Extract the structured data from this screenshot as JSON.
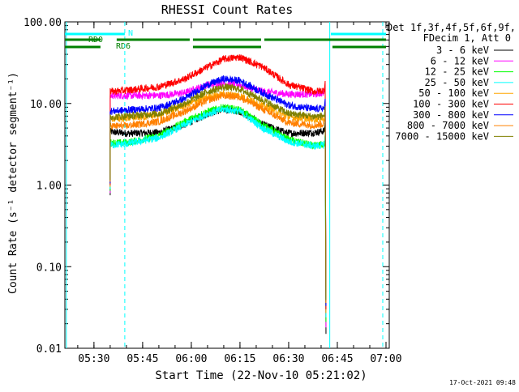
{
  "chart_data": {
    "type": "line",
    "title": "RHESSI Count Rates",
    "xlabel": "Start Time (22-Nov-10 05:21:02)",
    "ylabel": "Count Rate (s⁻¹ detector segment⁻¹)",
    "y_scale": "log",
    "ylim": [
      0.01,
      100
    ],
    "xlim": [
      "05:21:02",
      "07:01:00"
    ],
    "x_ticks": [
      "05:30",
      "05:45",
      "06:00",
      "06:15",
      "06:30",
      "06:45",
      "07:00"
    ],
    "y_ticks": [
      "0.01",
      "0.10",
      "1.00",
      "10.00",
      "100.00"
    ],
    "legend_header": [
      "Det 1f,3f,4f,5f,6f,9f,",
      "FDecim 1, Att 0"
    ],
    "legend_position": "right",
    "timestamp": "17-Oct-2021 09:48",
    "annotations": {
      "n_label": "N",
      "rd0_label": "RD0",
      "rd6_label": "RD6"
    },
    "flag_bars": {
      "night": {
        "color": "#00ffff",
        "segments": [
          [
            "05:21:02",
            "05:39:30"
          ],
          [
            "06:43:00",
            "07:00:00"
          ]
        ]
      },
      "rd0": {
        "color": "#008000",
        "segments": [
          [
            "05:21:02",
            "05:32:00"
          ],
          [
            "05:37:00",
            "05:59:30"
          ],
          [
            "06:00:30",
            "06:21:30"
          ],
          [
            "06:22:30",
            "06:43:30"
          ],
          [
            "06:43:30",
            "07:00:00"
          ]
        ]
      },
      "rd6": {
        "color": "#008000",
        "segments": [
          [
            "05:21:02",
            "05:32:00"
          ],
          [
            "06:00:30",
            "06:21:30"
          ],
          [
            "06:43:30",
            "07:00:00"
          ]
        ]
      }
    },
    "vlines": [
      {
        "time": "05:21:30",
        "color": "#00ffff",
        "style": "solid"
      },
      {
        "time": "05:39:30",
        "color": "#00ffff",
        "style": "dashed"
      },
      {
        "time": "06:42:40",
        "color": "#00ffff",
        "style": "solid"
      },
      {
        "time": "06:59:00",
        "color": "#00ffff",
        "style": "dashed"
      }
    ],
    "series": [
      {
        "name": "3 - 6 keV",
        "color": "#000000",
        "points": [
          [
            "05:35:00",
            4.5
          ],
          [
            "05:40:00",
            4.3
          ],
          [
            "05:50:00",
            4.4
          ],
          [
            "05:58:00",
            5.5
          ],
          [
            "06:05:00",
            7.5
          ],
          [
            "06:10:00",
            8.5
          ],
          [
            "06:15:00",
            8.0
          ],
          [
            "06:22:00",
            5.5
          ],
          [
            "06:30:00",
            4.3
          ],
          [
            "06:38:00",
            4.4
          ],
          [
            "06:41:00",
            4.6
          ]
        ]
      },
      {
        "name": "6 - 12 keV",
        "color": "#ff00ff",
        "points": [
          [
            "05:35:00",
            12.5
          ],
          [
            "05:40:00",
            12.5
          ],
          [
            "05:50:00",
            12.5
          ],
          [
            "05:58:00",
            13.5
          ],
          [
            "06:05:00",
            17.0
          ],
          [
            "06:10:00",
            17.5
          ],
          [
            "06:15:00",
            17.0
          ],
          [
            "06:22:00",
            14.0
          ],
          [
            "06:30:00",
            13.0
          ],
          [
            "06:38:00",
            13.0
          ],
          [
            "06:41:00",
            13.5
          ]
        ]
      },
      {
        "name": "12 - 25 keV",
        "color": "#00ff00",
        "points": [
          [
            "05:35:00",
            3.3
          ],
          [
            "05:40:00",
            3.3
          ],
          [
            "05:50:00",
            4.0
          ],
          [
            "05:58:00",
            6.0
          ],
          [
            "06:05:00",
            8.0
          ],
          [
            "06:10:00",
            9.0
          ],
          [
            "06:15:00",
            8.3
          ],
          [
            "06:22:00",
            5.5
          ],
          [
            "06:30:00",
            3.6
          ],
          [
            "06:38:00",
            3.0
          ],
          [
            "06:41:00",
            3.2
          ]
        ]
      },
      {
        "name": "25 - 50 keV",
        "color": "#00ffff",
        "points": [
          [
            "05:35:00",
            3.1
          ],
          [
            "05:40:00",
            3.2
          ],
          [
            "05:50:00",
            3.8
          ],
          [
            "05:58:00",
            5.5
          ],
          [
            "06:05:00",
            7.5
          ],
          [
            "06:10:00",
            8.5
          ],
          [
            "06:15:00",
            8.0
          ],
          [
            "06:22:00",
            5.0
          ],
          [
            "06:30:00",
            3.4
          ],
          [
            "06:38:00",
            3.0
          ],
          [
            "06:41:00",
            3.1
          ]
        ]
      },
      {
        "name": "50 - 100 keV",
        "color": "#ffa500",
        "points": [
          [
            "05:35:00",
            6.5
          ],
          [
            "05:40:00",
            6.6
          ],
          [
            "05:50:00",
            7.2
          ],
          [
            "05:58:00",
            9.5
          ],
          [
            "06:05:00",
            12.0
          ],
          [
            "06:10:00",
            13.0
          ],
          [
            "06:15:00",
            12.5
          ],
          [
            "06:22:00",
            9.5
          ],
          [
            "06:30:00",
            6.8
          ],
          [
            "06:38:00",
            6.4
          ],
          [
            "06:41:00",
            6.6
          ]
        ]
      },
      {
        "name": "100 - 300 keV",
        "color": "#ff0000",
        "points": [
          [
            "05:35:00",
            14.0
          ],
          [
            "05:40:00",
            14.5
          ],
          [
            "05:50:00",
            16.0
          ],
          [
            "05:58:00",
            20.0
          ],
          [
            "06:05:00",
            28.0
          ],
          [
            "06:10:00",
            35.0
          ],
          [
            "06:15:00",
            37.0
          ],
          [
            "06:22:00",
            28.0
          ],
          [
            "06:30:00",
            17.0
          ],
          [
            "06:38:00",
            14.0
          ],
          [
            "06:41:00",
            14.5
          ]
        ]
      },
      {
        "name": "300 - 800 keV",
        "color": "#0000ff",
        "points": [
          [
            "05:35:00",
            8.0
          ],
          [
            "05:40:00",
            8.3
          ],
          [
            "05:50:00",
            8.8
          ],
          [
            "05:58:00",
            11.5
          ],
          [
            "06:05:00",
            17.0
          ],
          [
            "06:10:00",
            20.0
          ],
          [
            "06:15:00",
            19.0
          ],
          [
            "06:22:00",
            13.5
          ],
          [
            "06:30:00",
            9.5
          ],
          [
            "06:38:00",
            8.5
          ],
          [
            "06:41:00",
            8.8
          ]
        ]
      },
      {
        "name": "800 - 7000 keV",
        "color": "#ff8000",
        "points": [
          [
            "05:35:00",
            5.3
          ],
          [
            "05:40:00",
            5.3
          ],
          [
            "05:50:00",
            6.0
          ],
          [
            "05:58:00",
            8.0
          ],
          [
            "06:05:00",
            11.0
          ],
          [
            "06:10:00",
            12.5
          ],
          [
            "06:15:00",
            12.0
          ],
          [
            "06:22:00",
            8.5
          ],
          [
            "06:30:00",
            5.8
          ],
          [
            "06:38:00",
            5.4
          ],
          [
            "06:41:00",
            5.6
          ]
        ]
      },
      {
        "name": "7000 - 15000 keV",
        "color": "#808000",
        "points": [
          [
            "05:35:00",
            6.8
          ],
          [
            "05:40:00",
            7.0
          ],
          [
            "05:50:00",
            7.5
          ],
          [
            "05:58:00",
            10.0
          ],
          [
            "06:05:00",
            14.0
          ],
          [
            "06:10:00",
            16.0
          ],
          [
            "06:15:00",
            15.0
          ],
          [
            "06:22:00",
            11.0
          ],
          [
            "06:30:00",
            7.5
          ],
          [
            "06:38:00",
            6.9
          ],
          [
            "06:41:00",
            7.1
          ]
        ]
      }
    ]
  }
}
